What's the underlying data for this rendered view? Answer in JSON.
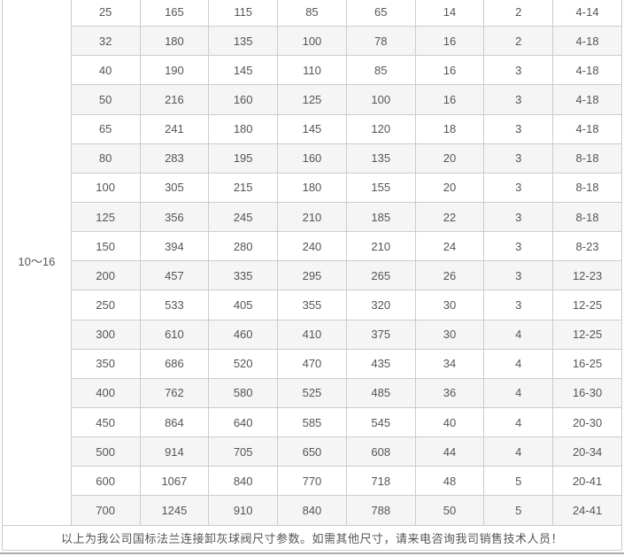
{
  "pressure_rating": "10～16",
  "table": {
    "rows": [
      [
        "25",
        "165",
        "115",
        "85",
        "65",
        "14",
        "2",
        "4-14"
      ],
      [
        "32",
        "180",
        "135",
        "100",
        "78",
        "16",
        "2",
        "4-18"
      ],
      [
        "40",
        "190",
        "145",
        "110",
        "85",
        "16",
        "3",
        "4-18"
      ],
      [
        "50",
        "216",
        "160",
        "125",
        "100",
        "16",
        "3",
        "4-18"
      ],
      [
        "65",
        "241",
        "180",
        "145",
        "120",
        "18",
        "3",
        "4-18"
      ],
      [
        "80",
        "283",
        "195",
        "160",
        "135",
        "20",
        "3",
        "8-18"
      ],
      [
        "100",
        "305",
        "215",
        "180",
        "155",
        "20",
        "3",
        "8-18"
      ],
      [
        "125",
        "356",
        "245",
        "210",
        "185",
        "22",
        "3",
        "8-18"
      ],
      [
        "150",
        "394",
        "280",
        "240",
        "210",
        "24",
        "3",
        "8-23"
      ],
      [
        "200",
        "457",
        "335",
        "295",
        "265",
        "26",
        "3",
        "12-23"
      ],
      [
        "250",
        "533",
        "405",
        "355",
        "320",
        "30",
        "3",
        "12-25"
      ],
      [
        "300",
        "610",
        "460",
        "410",
        "375",
        "30",
        "4",
        "12-25"
      ],
      [
        "350",
        "686",
        "520",
        "470",
        "435",
        "34",
        "4",
        "16-25"
      ],
      [
        "400",
        "762",
        "580",
        "525",
        "485",
        "36",
        "4",
        "16-30"
      ],
      [
        "450",
        "864",
        "640",
        "585",
        "545",
        "40",
        "4",
        "20-30"
      ],
      [
        "500",
        "914",
        "705",
        "650",
        "608",
        "44",
        "4",
        "20-34"
      ],
      [
        "600",
        "1067",
        "840",
        "770",
        "718",
        "48",
        "5",
        "20-41"
      ],
      [
        "700",
        "1245",
        "910",
        "840",
        "788",
        "50",
        "5",
        "24-41"
      ]
    ]
  },
  "footer": {
    "note": "以上为我公司国标法兰连接卸灰球阀尺寸参数。如需其他尺寸，请来电咨询我司销售技术人员！"
  },
  "colors": {
    "stripe": "#f5f5f5",
    "border": "#cccccc",
    "text": "#555555",
    "divider": "#a9a9a9"
  }
}
